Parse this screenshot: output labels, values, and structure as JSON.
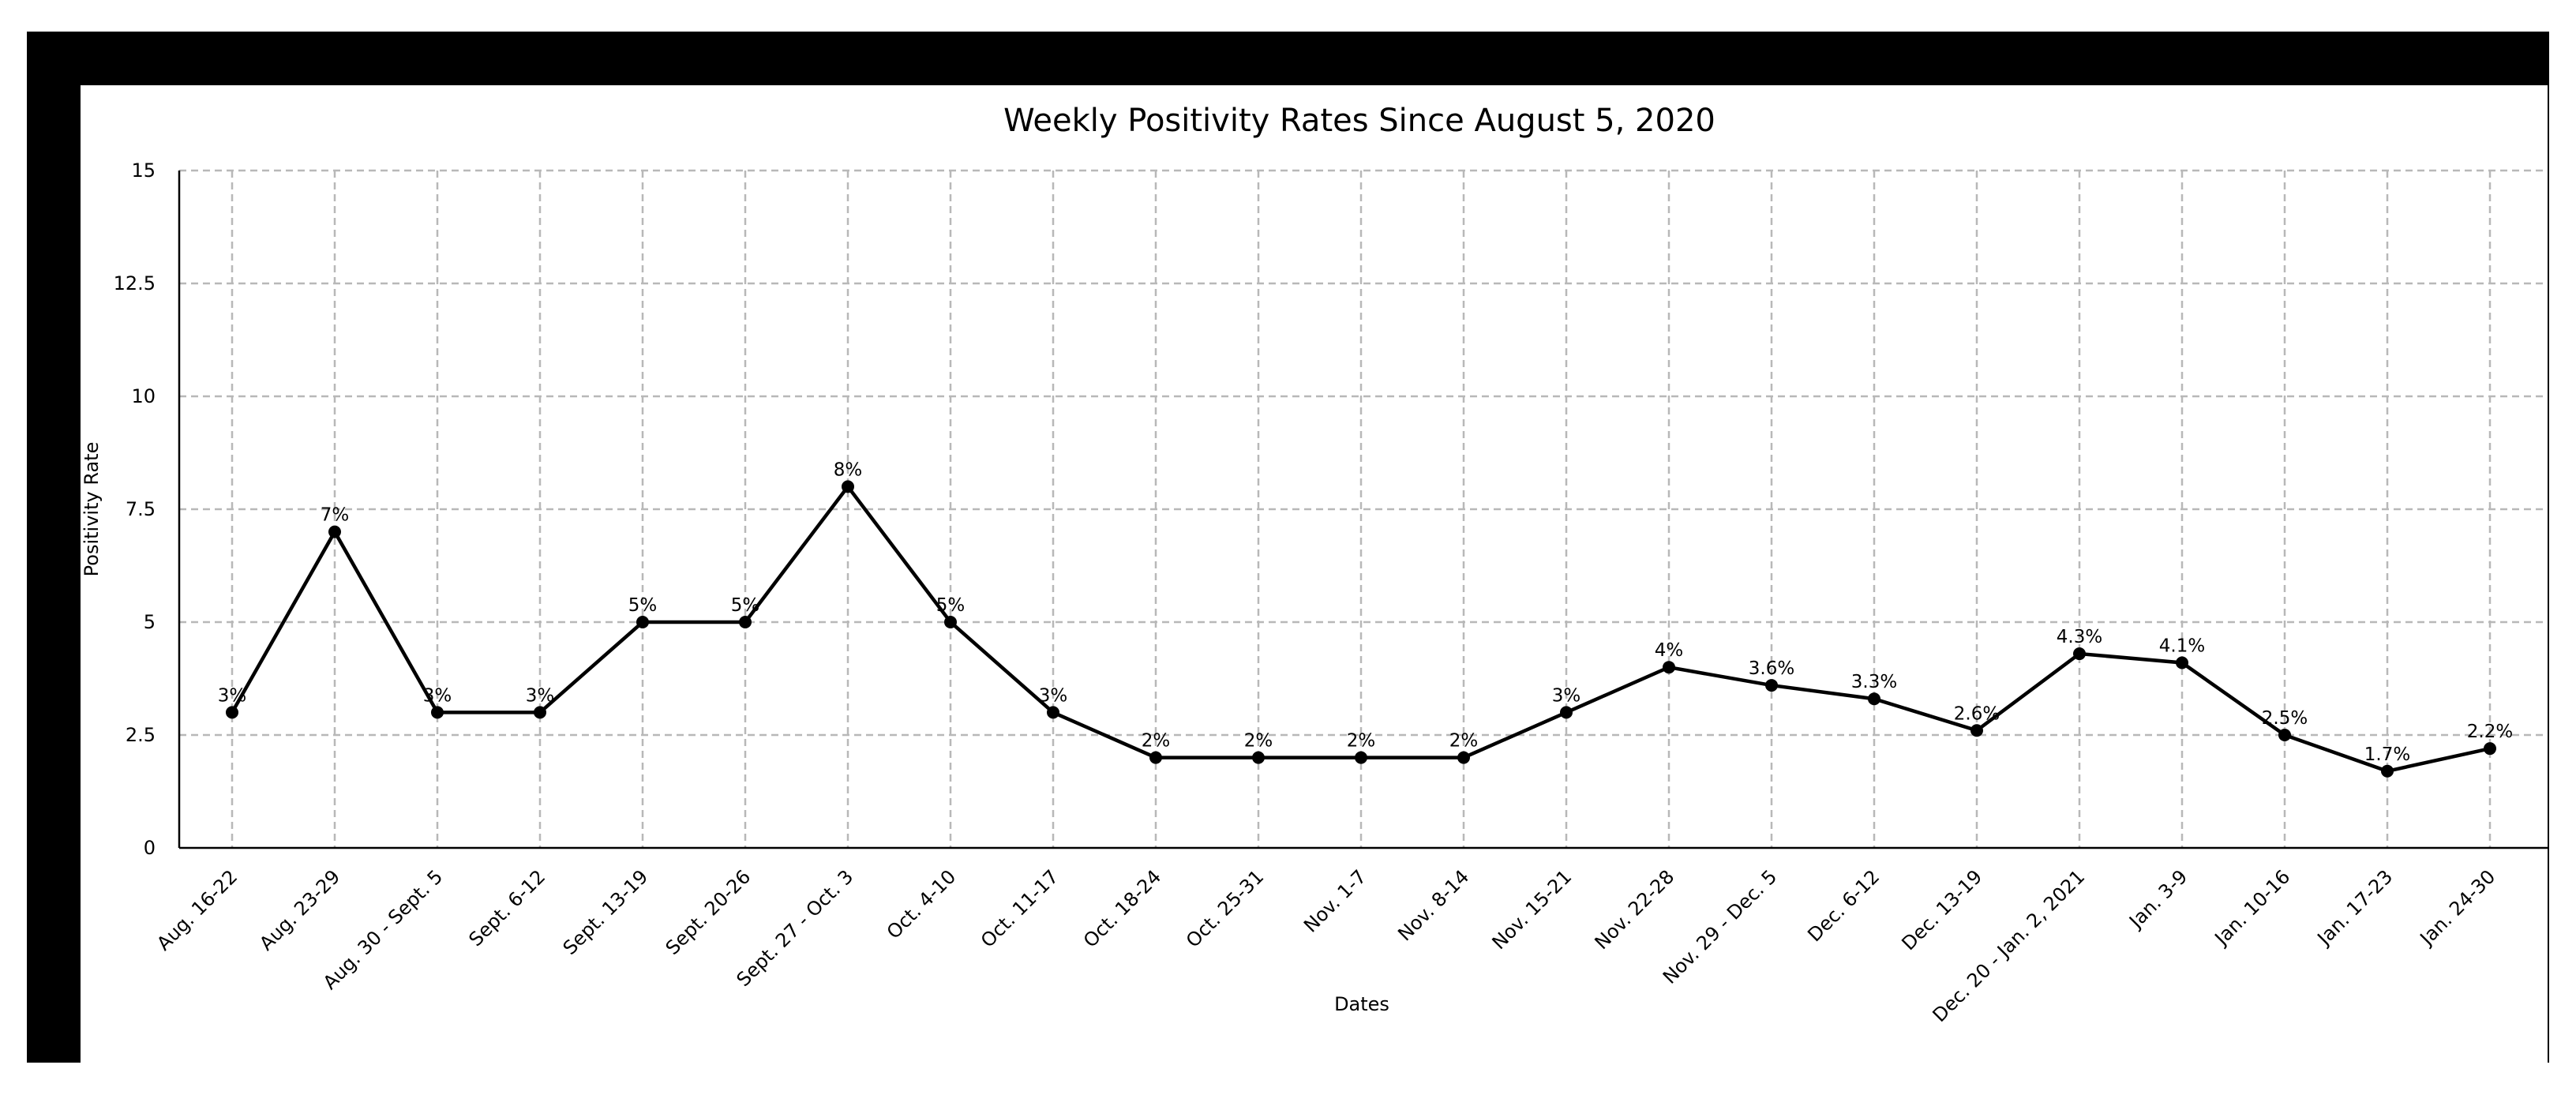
{
  "chart_data": {
    "type": "line",
    "title": "Weekly Positivity Rates Since August 5, 2020",
    "xlabel": "Dates",
    "ylabel": "Positivity Rate",
    "ylim": [
      0,
      15
    ],
    "yticks": [
      "0",
      "2.5",
      "5",
      "7.5",
      "10",
      "12.5",
      "15"
    ],
    "ytick_values": [
      0,
      2.5,
      5,
      7.5,
      10,
      12.5,
      15
    ],
    "grid": true,
    "legend": "none",
    "categories": [
      "Aug. 16-22",
      "Aug. 23-29",
      "Aug. 30 - Sept. 5",
      "Sept. 6-12",
      "Sept. 13-19",
      "Sept. 20-26",
      "Sept. 27 - Oct. 3",
      "Oct. 4-10",
      "Oct. 11-17",
      "Oct. 18-24",
      "Oct. 25-31",
      "Nov. 1-7",
      "Nov. 8-14",
      "Nov. 15-21",
      "Nov. 22-28",
      "Nov. 29 - Dec. 5",
      "Dec. 6-12",
      "Dec. 13-19",
      "Dec. 20 - Jan. 2, 2021",
      "Jan. 3-9",
      "Jan. 10-16",
      "Jan. 17-23",
      "Jan. 24-30"
    ],
    "series": [
      {
        "values": [
          3,
          7,
          3,
          3,
          5,
          5,
          8,
          5,
          3,
          2,
          2,
          2,
          2,
          3,
          4,
          3.6,
          3.3,
          2.6,
          4.3,
          4.1,
          2.5,
          1.7,
          2.2
        ],
        "labels": [
          "3%",
          "7%",
          "3%",
          "3%",
          "5%",
          "5%",
          "8%",
          "5%",
          "3%",
          "2%",
          "2%",
          "2%",
          "2%",
          "3%",
          "4%",
          "3.6%",
          "3.3%",
          "2.6%",
          "4.3%",
          "4.1%",
          "2.5%",
          "1.7%",
          "2.2%"
        ]
      }
    ],
    "colors": {
      "line": "#000000",
      "marker": "#000000",
      "grid": "#b8b8b8",
      "frame": "#000000"
    }
  }
}
